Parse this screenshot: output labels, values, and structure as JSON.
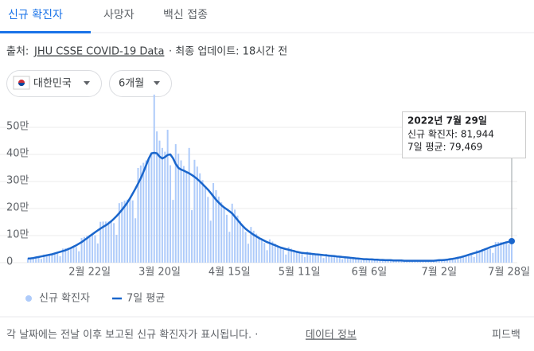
{
  "tabs": [
    "신규 확진자",
    "사망자",
    "백신 접종"
  ],
  "source": {
    "prefix": "출처:",
    "link": "JHU CSSE COVID-19 Data",
    "updated": "· 최종 업데이트: 18시간 전"
  },
  "filters": [
    "대한민국",
    "6개월"
  ],
  "footer": {
    "note": "각 날짜에는 전날 이후 보고된 신규 확진자가 표시됩니다. ·",
    "link": "데이터 정보",
    "feedback": "피드백"
  },
  "chart_data": {
    "type": "bar",
    "categories": [
      null,
      null,
      null,
      null,
      null,
      null,
      null,
      null,
      null,
      null,
      null,
      null,
      null,
      null,
      null,
      null,
      null,
      null,
      null,
      null,
      null,
      null,
      null,
      "2월 22일",
      null,
      null,
      null,
      null,
      null,
      null,
      null,
      null,
      null,
      null,
      null,
      null,
      null,
      null,
      null,
      null,
      null,
      null,
      null,
      null,
      null,
      null,
      null,
      null,
      null,
      "3월 20일",
      null,
      null,
      null,
      null,
      null,
      null,
      null,
      null,
      null,
      null,
      null,
      null,
      null,
      null,
      null,
      null,
      null,
      null,
      null,
      null,
      null,
      null,
      null,
      null,
      null,
      "4월 15일",
      null,
      null,
      null,
      null,
      null,
      null,
      null,
      null,
      null,
      null,
      null,
      null,
      null,
      null,
      null,
      null,
      null,
      null,
      null,
      null,
      null,
      null,
      null,
      null,
      null,
      "5월 11일",
      null,
      null,
      null,
      null,
      null,
      null,
      null,
      null,
      null,
      null,
      null,
      null,
      null,
      null,
      null,
      null,
      null,
      null,
      null,
      null,
      null,
      null,
      null,
      null,
      null,
      "6월 6일",
      null,
      null,
      null,
      null,
      null,
      null,
      null,
      null,
      null,
      null,
      null,
      null,
      null,
      null,
      null,
      null,
      null,
      null,
      null,
      null,
      null,
      null,
      null,
      null,
      null,
      "7월 2일",
      null,
      null,
      null,
      null,
      null,
      null,
      null,
      null,
      null,
      null,
      null,
      null,
      null,
      null,
      null,
      null,
      null,
      null,
      null,
      null,
      null,
      null,
      null,
      null,
      null,
      "7월 28일",
      null
    ],
    "series": [
      {
        "name": "신규 확진자",
        "type": "bar",
        "color": "#aecbfa",
        "values": [
          1.7,
          1.8,
          1.8,
          1.9,
          1.9,
          1.4,
          3.0,
          3.1,
          3.2,
          3.3,
          3.4,
          3.3,
          2.4,
          5.2,
          5.3,
          5.5,
          5.7,
          5.9,
          5.8,
          4.2,
          9.1,
          9.5,
          9.9,
          10.3,
          10.5,
          10.1,
          7.1,
          15.1,
          15.2,
          15.2,
          15.2,
          15.3,
          14.6,
          10.3,
          22.0,
          22.4,
          22.9,
          23.3,
          23.8,
          23.0,
          16.4,
          35.0,
          35.9,
          36.9,
          37.8,
          38.5,
          40.7,
          62.1,
          48.5,
          45.1,
          42.4,
          41.0,
          49.1,
          36.0,
          23.2,
          43.8,
          40.3,
          37.8,
          35.7,
          33.5,
          42.4,
          19.4,
          38.0,
          35.5,
          33.0,
          30.5,
          28.0,
          24.3,
          15.5,
          29.4,
          26.8,
          24.4,
          22.3,
          20.4,
          17.7,
          11.4,
          21.8,
          19.6,
          17.4,
          15.3,
          13.5,
          11.3,
          7.0,
          13.2,
          11.8,
          10.7,
          9.6,
          8.6,
          7.3,
          4.6,
          8.6,
          7.8,
          7.0,
          6.3,
          5.6,
          4.8,
          3.0,
          5.8,
          5.2,
          4.7,
          4.2,
          3.8,
          3.2,
          2.1,
          4.1,
          3.8,
          3.5,
          3.3,
          3.0,
          2.6,
          1.7,
          3.2,
          3.0,
          2.8,
          2.5,
          2.3,
          2.0,
          1.3,
          2.4,
          2.2,
          2.0,
          1.8,
          1.6,
          1.4,
          0.8,
          1.6,
          1.5,
          1.3,
          1.3,
          1.1,
          1.0,
          0.6,
          1.2,
          1.0,
          1.0,
          0.9,
          0.8,
          0.7,
          0.5,
          1.0,
          0.8,
          0.8,
          0.7,
          0.7,
          0.6,
          0.4,
          0.8,
          0.8,
          0.8,
          0.7,
          0.7,
          0.6,
          0.5,
          1.1,
          1.0,
          1.1,
          1.2,
          1.3,
          1.3,
          1.0,
          2.2,
          2.3,
          2.5,
          2.7,
          2.9,
          2.9,
          2.1,
          4.6,
          4.7,
          5.0,
          5.1,
          5.3,
          5.1,
          3.6,
          7.6,
          7.6,
          7.6,
          7.6,
          7.5,
          6.9,
          8.1944
        ]
      },
      {
        "name": "7일 평균",
        "type": "line",
        "color": "#1a66cc",
        "values": [
          1.5,
          1.6,
          1.7,
          1.9,
          2.1,
          2.3,
          2.5,
          2.7,
          2.9,
          3.1,
          3.4,
          3.7,
          4.0,
          4.3,
          4.6,
          5.0,
          5.4,
          5.9,
          6.4,
          7.0,
          7.6,
          8.3,
          9.0,
          9.8,
          10.5,
          11.2,
          11.9,
          12.6,
          13.2,
          13.8,
          14.5,
          15.3,
          16.2,
          17.2,
          18.3,
          19.5,
          20.8,
          22.2,
          23.8,
          25.5,
          27.3,
          29.2,
          31.2,
          33.5,
          36.0,
          38.5,
          40.4,
          40.6,
          40.4,
          39.2,
          38.5,
          39.0,
          39.8,
          40.0,
          38.6,
          36.5,
          35.0,
          34.4,
          34.0,
          33.5,
          33.0,
          32.4,
          31.7,
          30.9,
          30.0,
          29.0,
          28.0,
          27.0,
          25.8,
          24.5,
          23.3,
          22.2,
          21.2,
          20.4,
          19.7,
          19.0,
          18.2,
          17.0,
          15.8,
          14.6,
          13.5,
          12.5,
          11.7,
          11.0,
          10.3,
          9.7,
          9.1,
          8.6,
          8.1,
          7.6,
          7.2,
          6.8,
          6.4,
          6.0,
          5.6,
          5.3,
          5.0,
          4.8,
          4.5,
          4.3,
          4.0,
          3.8,
          3.6,
          3.5,
          3.4,
          3.3,
          3.2,
          3.1,
          3.0,
          2.9,
          2.8,
          2.7,
          2.6,
          2.5,
          2.4,
          2.3,
          2.2,
          2.1,
          2.0,
          1.9,
          1.8,
          1.7,
          1.6,
          1.5,
          1.4,
          1.3,
          1.3,
          1.2,
          1.2,
          1.1,
          1.1,
          1.0,
          1.0,
          0.9,
          0.9,
          0.9,
          0.8,
          0.8,
          0.8,
          0.8,
          0.7,
          0.7,
          0.7,
          0.7,
          0.7,
          0.7,
          0.7,
          0.7,
          0.7,
          0.7,
          0.7,
          0.7,
          0.8,
          0.9,
          0.9,
          1.0,
          1.1,
          1.3,
          1.4,
          1.6,
          1.8,
          2.0,
          2.3,
          2.6,
          2.9,
          3.2,
          3.5,
          3.8,
          4.1,
          4.5,
          4.9,
          5.3,
          5.7,
          6.0,
          6.3,
          6.6,
          6.9,
          7.2,
          7.5,
          7.7,
          7.9469
        ]
      }
    ],
    "ylim": [
      0,
      65
    ],
    "yticks": [
      0,
      {
        "value": 10,
        "label": "10만"
      },
      {
        "value": 20,
        "label": "20만"
      },
      {
        "value": 30,
        "label": "30만"
      },
      {
        "value": 40,
        "label": "40만"
      },
      {
        "value": 50,
        "label": "50만"
      }
    ],
    "grid": true,
    "tooltip": {
      "title": "2022년 7월 29일",
      "lines": [
        "신규 확진자: 81,944",
        "7일 평균: 79,469"
      ]
    }
  }
}
